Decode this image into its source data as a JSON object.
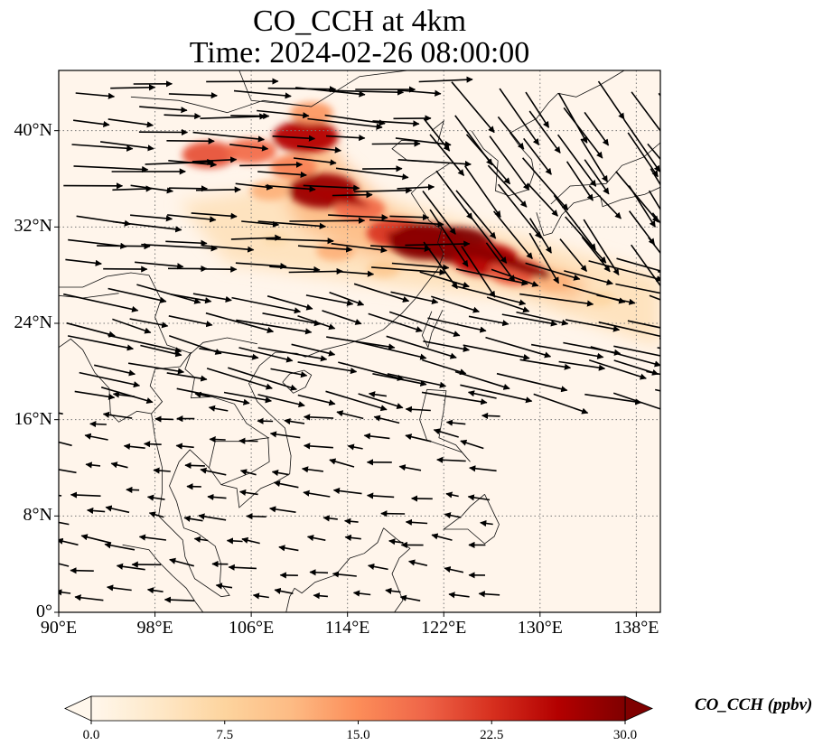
{
  "title": {
    "line1": "CO_CCH at 4km",
    "line2": "Time: 2024-02-26 08:00:00"
  },
  "map": {
    "projection": "PlateCarree",
    "lon_range": [
      90,
      140
    ],
    "lat_range": [
      0,
      45
    ],
    "lon_ticks": [
      {
        "value": 90,
        "label": "90°E"
      },
      {
        "value": 98,
        "label": "98°E"
      },
      {
        "value": 106,
        "label": "106°E"
      },
      {
        "value": 114,
        "label": "114°E"
      },
      {
        "value": 122,
        "label": "122°E"
      },
      {
        "value": 130,
        "label": "130°E"
      },
      {
        "value": 138,
        "label": "138°E"
      }
    ],
    "lat_ticks": [
      {
        "value": 0,
        "label": "0°"
      },
      {
        "value": 8,
        "label": "8°N"
      },
      {
        "value": 16,
        "label": "16°N"
      },
      {
        "value": 24,
        "label": "24°N"
      },
      {
        "value": 32,
        "label": "32°N"
      },
      {
        "value": 40,
        "label": "40°N"
      }
    ],
    "gridlines": "dotted",
    "background_color": "#fff5eb"
  },
  "colorbar": {
    "label": "CO_CCH (ppbv)",
    "min": 0.0,
    "max": 30.0,
    "extend": "both",
    "ticks": [
      "0.0",
      "7.5",
      "15.0",
      "22.5",
      "30.0"
    ],
    "colormap": "OrRd",
    "colors": [
      "#fff7ec",
      "#fee8c8",
      "#fdd49e",
      "#fdbb84",
      "#fc8d59",
      "#ef6548",
      "#d7301f",
      "#b30000",
      "#7f0000"
    ]
  },
  "plume": [
    {
      "lon": 110.5,
      "lat": 39.5,
      "value": 26
    },
    {
      "lon": 111.0,
      "lat": 41.5,
      "value": 14
    },
    {
      "lon": 109.5,
      "lat": 37.0,
      "value": 16
    },
    {
      "lon": 112.0,
      "lat": 35.0,
      "value": 28
    },
    {
      "lon": 115.0,
      "lat": 33.5,
      "value": 18
    },
    {
      "lon": 118.0,
      "lat": 31.5,
      "value": 22
    },
    {
      "lon": 120.5,
      "lat": 30.8,
      "value": 30
    },
    {
      "lon": 123.0,
      "lat": 30.5,
      "value": 30
    },
    {
      "lon": 125.5,
      "lat": 29.3,
      "value": 26
    },
    {
      "lon": 128.0,
      "lat": 28.3,
      "value": 20
    },
    {
      "lon": 131.0,
      "lat": 27.5,
      "value": 12
    },
    {
      "lon": 135.0,
      "lat": 26.0,
      "value": 7
    },
    {
      "lon": 102.5,
      "lat": 38.0,
      "value": 20
    },
    {
      "lon": 106.0,
      "lat": 38.3,
      "value": 18
    },
    {
      "lon": 107.5,
      "lat": 35.0,
      "value": 12
    },
    {
      "lon": 113.0,
      "lat": 30.0,
      "value": 12
    },
    {
      "lon": 117.0,
      "lat": 28.5,
      "value": 9
    },
    {
      "lon": 108.0,
      "lat": 31.0,
      "value": 6
    }
  ],
  "wind_field": {
    "description_units": "m/s",
    "regions": [
      {
        "name": "north",
        "lat_min": 28,
        "lat_max": 45,
        "lon_min": 90,
        "lon_max": 120,
        "u": 1.0,
        "v": -0.05
      },
      {
        "name": "northeast",
        "lat_min": 30,
        "lat_max": 45,
        "lon_min": 120,
        "lon_max": 140,
        "u": 0.6,
        "v": -0.8
      },
      {
        "name": "subtropical",
        "lat_min": 18,
        "lat_max": 30,
        "lon_min": 90,
        "lon_max": 140,
        "u": 1.0,
        "v": -0.25
      },
      {
        "name": "tropical",
        "lat_min": 0,
        "lat_max": 18,
        "lon_min": 90,
        "lon_max": 140,
        "u": -0.7,
        "v": 0.1
      }
    ]
  }
}
